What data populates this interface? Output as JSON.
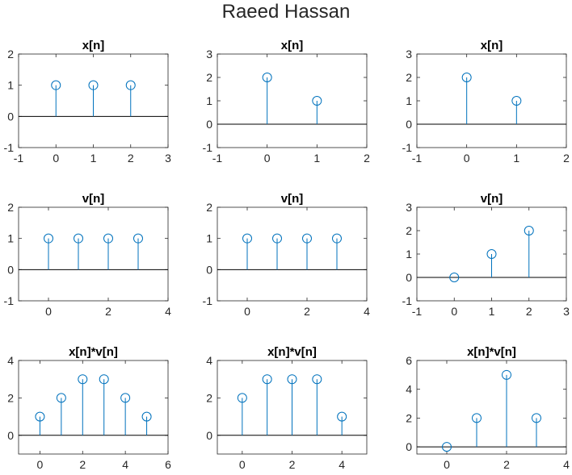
{
  "figure": {
    "title": "Raeed Hassan"
  },
  "style": {
    "stem_color": "#0072BD",
    "axis_color": "#262626",
    "zero_line_color": "#000000"
  },
  "chart_data": [
    {
      "type": "stem",
      "title": "x[n]",
      "x": [
        0,
        1,
        2
      ],
      "y": [
        1,
        1,
        1
      ],
      "xlim": [
        -1,
        3
      ],
      "ylim": [
        -1,
        2
      ],
      "xticks": [
        -1,
        0,
        1,
        2,
        3
      ],
      "yticks": [
        -1,
        0,
        1,
        2
      ],
      "grid": false
    },
    {
      "type": "stem",
      "title": "x[n]",
      "x": [
        0,
        1
      ],
      "y": [
        2,
        1
      ],
      "xlim": [
        -1,
        2
      ],
      "ylim": [
        -1,
        3
      ],
      "xticks": [
        -1,
        0,
        1,
        2
      ],
      "yticks": [
        -1,
        0,
        1,
        2,
        3
      ],
      "grid": false
    },
    {
      "type": "stem",
      "title": "x[n]",
      "x": [
        0,
        1
      ],
      "y": [
        2,
        1
      ],
      "xlim": [
        -1,
        2
      ],
      "ylim": [
        -1,
        3
      ],
      "xticks": [
        -1,
        0,
        1,
        2
      ],
      "yticks": [
        -1,
        0,
        1,
        2,
        3
      ],
      "grid": false
    },
    {
      "type": "stem",
      "title": "v[n]",
      "x": [
        0,
        1,
        2,
        3
      ],
      "y": [
        1,
        1,
        1,
        1
      ],
      "xlim": [
        -1,
        4
      ],
      "ylim": [
        -1,
        2
      ],
      "xticks": [
        0,
        2,
        4
      ],
      "yticks": [
        -1,
        0,
        1,
        2
      ],
      "grid": false
    },
    {
      "type": "stem",
      "title": "v[n]",
      "x": [
        0,
        1,
        2,
        3
      ],
      "y": [
        1,
        1,
        1,
        1
      ],
      "xlim": [
        -1,
        4
      ],
      "ylim": [
        -1,
        2
      ],
      "xticks": [
        0,
        2,
        4
      ],
      "yticks": [
        -1,
        0,
        1,
        2
      ],
      "grid": false
    },
    {
      "type": "stem",
      "title": "v[n]",
      "x": [
        0,
        1,
        2
      ],
      "y": [
        0,
        1,
        2
      ],
      "xlim": [
        -1,
        3
      ],
      "ylim": [
        -1,
        3
      ],
      "xticks": [
        -1,
        0,
        1,
        2,
        3
      ],
      "yticks": [
        -1,
        0,
        1,
        2,
        3
      ],
      "grid": false
    },
    {
      "type": "stem",
      "title": "x[n]*v[n]",
      "x": [
        0,
        1,
        2,
        3,
        4,
        5
      ],
      "y": [
        1,
        2,
        3,
        3,
        2,
        1
      ],
      "xlim": [
        -1,
        6
      ],
      "ylim": [
        -1,
        4
      ],
      "xticks": [
        0,
        2,
        4,
        6
      ],
      "yticks": [
        0,
        2,
        4
      ],
      "grid": false
    },
    {
      "type": "stem",
      "title": "x[n]*v[n]",
      "x": [
        0,
        1,
        2,
        3,
        4
      ],
      "y": [
        2,
        3,
        3,
        3,
        1
      ],
      "xlim": [
        -1,
        5
      ],
      "ylim": [
        -1,
        4
      ],
      "xticks": [
        0,
        2,
        4
      ],
      "yticks": [
        0,
        2,
        4
      ],
      "grid": false
    },
    {
      "type": "stem",
      "title": "x[n]*v[n]",
      "x": [
        0,
        1,
        2,
        3
      ],
      "y": [
        0,
        2,
        5,
        2
      ],
      "xlim": [
        -1,
        4
      ],
      "ylim": [
        -0.5,
        6
      ],
      "xticks": [
        0,
        2,
        4
      ],
      "yticks": [
        0,
        2,
        4,
        6
      ],
      "grid": false
    }
  ]
}
